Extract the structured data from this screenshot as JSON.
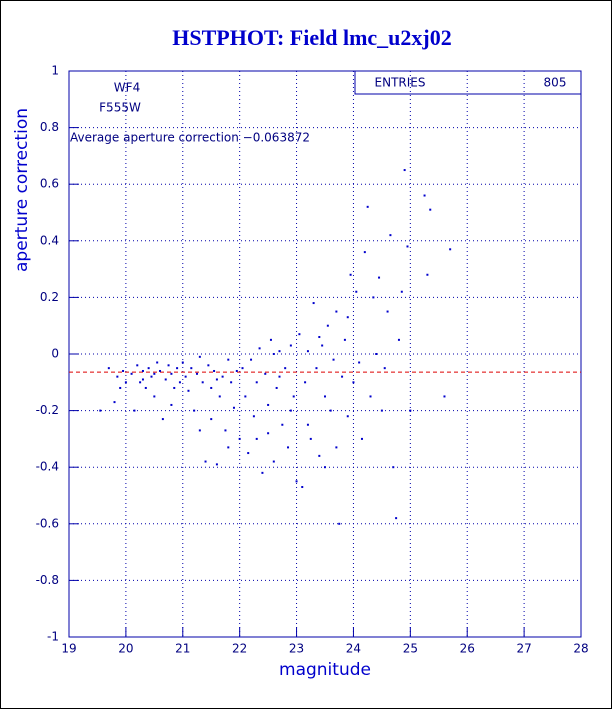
{
  "chart_data": {
    "type": "scatter",
    "title": "HSTPHOT: Field lmc_u2xj02",
    "x_label": "magnitude",
    "y_label": "aperture correction",
    "annotations": [
      "WF4",
      "F555W",
      "Average aperture correction −0.063872"
    ],
    "stats": {
      "label": "ENTRIES",
      "value": 805
    },
    "reference_line": {
      "value": -0.063872,
      "color": "#dd0000"
    },
    "color": "#0000cc",
    "grid": true,
    "xlim": [
      19,
      28
    ],
    "ylim": [
      -1,
      1
    ],
    "xticks": [
      19,
      20,
      21,
      22,
      23,
      24,
      25,
      26,
      27,
      28
    ],
    "yticks": [
      -1,
      -0.8,
      -0.6,
      -0.4,
      -0.2,
      0,
      0.2,
      0.4,
      0.6,
      0.8,
      1
    ],
    "x": [
      19.55,
      19.7,
      19.8,
      19.85,
      19.9,
      19.95,
      20.0,
      20.1,
      20.15,
      20.2,
      20.25,
      20.3,
      20.35,
      20.4,
      20.45,
      20.5,
      20.55,
      20.6,
      20.65,
      20.7,
      20.75,
      20.8,
      20.85,
      20.9,
      20.95,
      21.0,
      20.3,
      20.5,
      20.8,
      21.05,
      21.1,
      21.15,
      21.2,
      21.25,
      21.3,
      21.35,
      21.4,
      21.45,
      21.5,
      21.55,
      21.6,
      21.65,
      21.7,
      21.75,
      21.8,
      21.85,
      21.9,
      21.95,
      22.0,
      21.5,
      21.8,
      21.3,
      21.6,
      22.05,
      22.1,
      22.15,
      22.2,
      22.25,
      22.3,
      22.35,
      22.4,
      22.45,
      22.5,
      22.55,
      22.6,
      22.65,
      22.7,
      22.75,
      22.8,
      22.85,
      22.9,
      22.95,
      23.0,
      22.5,
      22.7,
      22.3,
      22.9,
      22.6,
      23.05,
      23.1,
      23.15,
      23.2,
      23.25,
      23.3,
      23.35,
      23.4,
      23.45,
      23.5,
      23.55,
      23.6,
      23.65,
      23.7,
      23.75,
      23.8,
      23.85,
      23.9,
      23.95,
      24.0,
      23.5,
      23.7,
      23.2,
      23.9,
      23.4,
      24.05,
      24.1,
      24.15,
      24.2,
      24.25,
      24.3,
      24.35,
      24.4,
      24.45,
      24.5,
      24.6,
      24.65,
      24.7,
      24.75,
      24.8,
      24.9,
      24.95,
      25.0,
      24.55,
      24.85,
      25.25,
      25.35,
      25.3,
      25.7,
      25.6
    ],
    "y": [
      -0.2,
      -0.05,
      -0.17,
      -0.08,
      -0.12,
      -0.06,
      -0.1,
      -0.07,
      -0.2,
      -0.04,
      -0.1,
      -0.06,
      -0.12,
      -0.05,
      -0.08,
      -0.15,
      -0.03,
      -0.06,
      -0.23,
      -0.09,
      -0.04,
      -0.07,
      -0.12,
      -0.05,
      -0.1,
      -0.03,
      -0.09,
      -0.07,
      -0.18,
      -0.08,
      -0.13,
      -0.05,
      -0.2,
      -0.07,
      -0.27,
      -0.1,
      -0.38,
      -0.04,
      -0.12,
      -0.06,
      -0.39,
      -0.15,
      -0.08,
      -0.27,
      -0.02,
      -0.1,
      -0.19,
      -0.06,
      -0.3,
      -0.23,
      -0.33,
      -0.01,
      -0.09,
      -0.05,
      -0.15,
      -0.35,
      -0.02,
      -0.22,
      -0.1,
      0.02,
      -0.42,
      -0.07,
      -0.18,
      0.05,
      -0.38,
      -0.12,
      0.01,
      -0.25,
      -0.05,
      -0.33,
      0.03,
      -0.15,
      -0.45,
      -0.28,
      -0.08,
      -0.3,
      -0.2,
      0.0,
      0.07,
      -0.47,
      -0.1,
      0.01,
      -0.3,
      0.18,
      -0.05,
      -0.36,
      0.03,
      -0.4,
      0.1,
      -0.2,
      -0.02,
      0.15,
      -0.6,
      -0.08,
      0.05,
      -0.22,
      0.28,
      -0.1,
      -0.15,
      -0.33,
      -0.25,
      0.13,
      0.06,
      0.22,
      -0.03,
      -0.3,
      0.36,
      0.52,
      -0.15,
      0.2,
      0.0,
      0.27,
      -0.2,
      0.15,
      0.42,
      -0.4,
      -0.58,
      0.05,
      0.65,
      0.38,
      -0.2,
      -0.05,
      0.22,
      0.56,
      0.51,
      0.28,
      0.37,
      -0.15
    ]
  }
}
